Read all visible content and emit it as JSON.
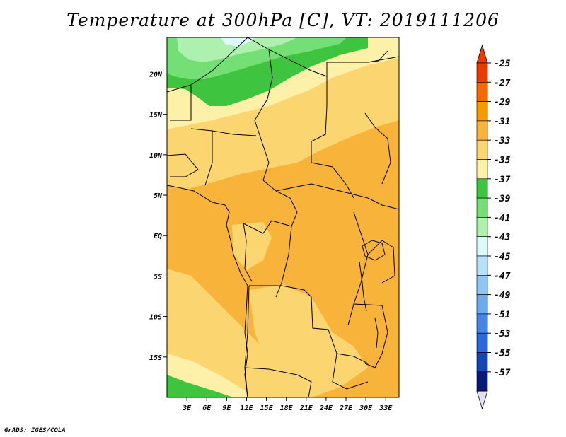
{
  "title": "Temperature at 300hPa [C], VT: 2019111206",
  "footer": "GrADS: IGES/COLA",
  "map": {
    "lon_range": [
      0,
      35
    ],
    "lat_range": [
      -20,
      24.5
    ],
    "lon_ticks": [
      {
        "value": 3,
        "label": "3E"
      },
      {
        "value": 6,
        "label": "6E"
      },
      {
        "value": 9,
        "label": "9E"
      },
      {
        "value": 12,
        "label": "12E"
      },
      {
        "value": 15,
        "label": "15E"
      },
      {
        "value": 18,
        "label": "18E"
      },
      {
        "value": 21,
        "label": "21E"
      },
      {
        "value": 24,
        "label": "24E"
      },
      {
        "value": 27,
        "label": "27E"
      },
      {
        "value": 30,
        "label": "30E"
      },
      {
        "value": 33,
        "label": "33E"
      }
    ],
    "lat_ticks": [
      {
        "value": 20,
        "label": "20N"
      },
      {
        "value": 15,
        "label": "15N"
      },
      {
        "value": 10,
        "label": "10N"
      },
      {
        "value": 5,
        "label": "5N"
      },
      {
        "value": 0,
        "label": "EQ"
      },
      {
        "value": -5,
        "label": "5S"
      },
      {
        "value": -10,
        "label": "10S"
      },
      {
        "value": -15,
        "label": "15S"
      }
    ]
  },
  "colorbar": {
    "levels": [
      {
        "label": "-25",
        "color": "#e83c00"
      },
      {
        "label": "-27",
        "color": "#f36b00"
      },
      {
        "label": "-29",
        "color": "#f59a00"
      },
      {
        "label": "-31",
        "color": "#f8b43a"
      },
      {
        "label": "-33",
        "color": "#fbd570"
      },
      {
        "label": "-35",
        "color": "#fdf0a8"
      },
      {
        "label": "-37",
        "color": "#3ec43e"
      },
      {
        "label": "-39",
        "color": "#74df74"
      },
      {
        "label": "-41",
        "color": "#aef0ae"
      },
      {
        "label": "-43",
        "color": "#dcfafa"
      },
      {
        "label": "-45",
        "color": "#b8e0f8"
      },
      {
        "label": "-47",
        "color": "#90c6f2"
      },
      {
        "label": "-49",
        "color": "#6aacee"
      },
      {
        "label": "-51",
        "color": "#4488e6"
      },
      {
        "label": "-53",
        "color": "#2a68dc"
      },
      {
        "label": "-55",
        "color": "#1446b4"
      },
      {
        "label": "-57",
        "color": "#081a78"
      }
    ],
    "top_cap_color": "#e83c00",
    "bottom_cap_color": "#e0e0f8"
  }
}
